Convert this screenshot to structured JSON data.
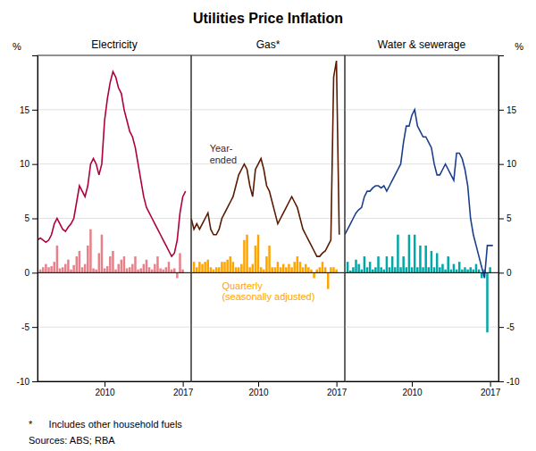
{
  "title": "Utilities Price Inflation",
  "footnotes": [
    "*      Includes other household fuels",
    "Sources: ABS; RBA"
  ],
  "chart_data": [
    {
      "type": "bar",
      "title": "Electricity",
      "ylabel": "%",
      "xlim": [
        2004.0,
        2017.75
      ],
      "xticks": [
        2010,
        2017
      ],
      "ylim": [
        -10,
        20
      ],
      "yticks": [
        -10,
        -5,
        0,
        5,
        10,
        15,
        {
          "value": 20,
          "label": null
        }
      ],
      "grid": true,
      "series": [
        {
          "type": "bar",
          "color": "#E8808A",
          "x": [
            2004.25,
            2004.5,
            2004.75,
            2005.0,
            2005.25,
            2005.5,
            2005.75,
            2006.0,
            2006.25,
            2006.5,
            2006.75,
            2007.0,
            2007.25,
            2007.5,
            2007.75,
            2008.0,
            2008.25,
            2008.5,
            2008.75,
            2009.0,
            2009.25,
            2009.5,
            2009.75,
            2010.0,
            2010.25,
            2010.5,
            2010.75,
            2011.0,
            2011.25,
            2011.5,
            2011.75,
            2012.0,
            2012.25,
            2012.5,
            2012.75,
            2013.0,
            2013.25,
            2013.5,
            2013.75,
            2014.0,
            2014.25,
            2014.5,
            2014.75,
            2015.0,
            2015.25,
            2015.5,
            2015.75,
            2016.0,
            2016.25,
            2016.5,
            2016.75,
            2017.0
          ],
          "values": [
            0.3,
            0.5,
            0.8,
            0.5,
            0.6,
            1.0,
            2.5,
            0.4,
            0.5,
            0.8,
            1.2,
            0.3,
            0.7,
            1.5,
            2.0,
            0.5,
            0.8,
            2.5,
            4.0,
            0.4,
            0.3,
            1.8,
            3.5,
            0.4,
            0.6,
            1.5,
            2.0,
            0.3,
            0.8,
            1.2,
            1.5,
            0.4,
            0.5,
            0.8,
            1.5,
            0.3,
            0.4,
            0.8,
            1.2,
            0.5,
            0.3,
            0.8,
            1.5,
            0.4,
            0.3,
            0.5,
            1.0,
            0.3,
            0.4,
            -0.5,
            1.8,
            0.3
          ]
        },
        {
          "type": "line",
          "color": "#B0003A",
          "x": [
            2004.0,
            2004.25,
            2004.5,
            2004.75,
            2005.0,
            2005.25,
            2005.5,
            2005.75,
            2006.0,
            2006.25,
            2006.5,
            2006.75,
            2007.0,
            2007.25,
            2007.5,
            2007.75,
            2008.0,
            2008.25,
            2008.5,
            2008.75,
            2009.0,
            2009.25,
            2009.5,
            2009.75,
            2010.0,
            2010.25,
            2010.5,
            2010.75,
            2011.0,
            2011.25,
            2011.5,
            2011.75,
            2012.0,
            2012.25,
            2012.5,
            2012.75,
            2013.0,
            2013.25,
            2013.5,
            2013.75,
            2014.0,
            2014.25,
            2014.5,
            2014.75,
            2015.0,
            2015.25,
            2015.5,
            2015.75,
            2016.0,
            2016.25,
            2016.5,
            2016.75,
            2017.0,
            2017.25
          ],
          "values": [
            3.0,
            3.2,
            3.0,
            2.8,
            3.0,
            3.5,
            4.5,
            5.0,
            4.5,
            4.0,
            3.8,
            4.2,
            4.5,
            5.0,
            6.5,
            8.0,
            7.5,
            7.0,
            8.0,
            10.0,
            10.5,
            10.0,
            9.0,
            10.0,
            14.0,
            16.0,
            17.5,
            18.5,
            18.0,
            17.0,
            16.5,
            15.0,
            14.0,
            13.0,
            12.5,
            11.5,
            10.0,
            8.5,
            7.0,
            6.0,
            5.5,
            5.0,
            4.5,
            4.0,
            3.5,
            3.0,
            2.5,
            2.0,
            1.5,
            1.8,
            3.0,
            5.5,
            7.0,
            7.5
          ]
        }
      ]
    },
    {
      "type": "bar",
      "title": "Gas*",
      "tick_labels": "x",
      "xlim": [
        2004.0,
        2017.75
      ],
      "xticks": [
        2010,
        2017
      ],
      "ylim": [
        -10,
        20
      ],
      "yticks": [
        -10,
        -5,
        0,
        5,
        10,
        15,
        {
          "value": 20,
          "label": null
        }
      ],
      "grid": true,
      "annotations": [
        {
          "text": "Year-\nended",
          "color": "#5C1A00"
        },
        {
          "text": "Quarterly\n(seasonally adjusted)",
          "color": "#FFA500"
        }
      ],
      "series": [
        {
          "type": "bar",
          "color": "#FFA500",
          "x": [
            2004.25,
            2004.5,
            2004.75,
            2005.0,
            2005.25,
            2005.5,
            2005.75,
            2006.0,
            2006.25,
            2006.5,
            2006.75,
            2007.0,
            2007.25,
            2007.5,
            2007.75,
            2008.0,
            2008.25,
            2008.5,
            2008.75,
            2009.0,
            2009.25,
            2009.5,
            2009.75,
            2010.0,
            2010.25,
            2010.5,
            2010.75,
            2011.0,
            2011.25,
            2011.5,
            2011.75,
            2012.0,
            2012.25,
            2012.5,
            2012.75,
            2013.0,
            2013.25,
            2013.5,
            2013.75,
            2014.0,
            2014.25,
            2014.5,
            2014.75,
            2015.0,
            2015.25,
            2015.5,
            2015.75,
            2016.0,
            2016.25,
            2016.5,
            2016.75,
            2017.0
          ],
          "values": [
            1.0,
            0.5,
            1.0,
            0.8,
            1.0,
            1.2,
            0.5,
            0.3,
            0.5,
            0.5,
            1.0,
            1.0,
            1.2,
            1.5,
            1.0,
            0.5,
            0.5,
            0.8,
            3.0,
            3.5,
            0.5,
            0.8,
            2.5,
            3.5,
            0.5,
            0.3,
            1.5,
            2.5,
            0.5,
            0.5,
            1.0,
            0.5,
            0.8,
            0.5,
            0.8,
            0.5,
            1.0,
            1.5,
            1.0,
            0.5,
            0.8,
            0.5,
            0.3,
            -0.5,
            0.3,
            0.5,
            1.0,
            0.5,
            -1.5,
            0.5,
            0.5,
            0.3
          ]
        },
        {
          "type": "line",
          "color": "#5C1A00",
          "x": [
            2004.0,
            2004.25,
            2004.5,
            2004.75,
            2005.0,
            2005.25,
            2005.5,
            2005.75,
            2006.0,
            2006.25,
            2006.5,
            2006.75,
            2007.0,
            2007.25,
            2007.5,
            2007.75,
            2008.0,
            2008.25,
            2008.5,
            2008.75,
            2009.0,
            2009.25,
            2009.5,
            2009.75,
            2010.0,
            2010.25,
            2010.5,
            2010.75,
            2011.0,
            2011.25,
            2011.5,
            2011.75,
            2012.0,
            2012.25,
            2012.5,
            2012.75,
            2013.0,
            2013.25,
            2013.5,
            2013.75,
            2014.0,
            2014.25,
            2014.5,
            2014.75,
            2015.0,
            2015.25,
            2015.5,
            2015.75,
            2016.0,
            2016.25,
            2016.5,
            2016.75,
            2017.0,
            2017.25
          ],
          "values": [
            5.0,
            4.0,
            4.5,
            4.0,
            4.5,
            5.0,
            5.5,
            4.0,
            3.5,
            3.5,
            4.0,
            5.0,
            5.5,
            6.0,
            6.5,
            7.0,
            8.0,
            9.0,
            9.5,
            10.0,
            9.5,
            8.0,
            7.0,
            9.5,
            10.0,
            10.5,
            9.5,
            8.0,
            7.5,
            6.5,
            5.5,
            4.5,
            5.0,
            5.5,
            6.0,
            6.5,
            7.0,
            6.5,
            6.0,
            5.0,
            4.0,
            3.5,
            3.0,
            2.5,
            2.0,
            1.5,
            1.5,
            1.8,
            2.0,
            2.5,
            3.0,
            18.0,
            19.5,
            3.5
          ]
        }
      ]
    },
    {
      "type": "bar",
      "title": "Water & sewerage",
      "ylabel": "%",
      "xlim": [
        2004.0,
        2017.75
      ],
      "xticks": [
        2010,
        2017
      ],
      "ylim": [
        -10,
        20
      ],
      "yticks": [
        -10,
        -5,
        0,
        5,
        10,
        15,
        {
          "value": 20,
          "label": null
        }
      ],
      "grid": true,
      "series": [
        {
          "type": "bar",
          "color": "#00A8A8",
          "x": [
            2004.25,
            2004.5,
            2004.75,
            2005.0,
            2005.25,
            2005.5,
            2005.75,
            2006.0,
            2006.25,
            2006.5,
            2006.75,
            2007.0,
            2007.25,
            2007.5,
            2007.75,
            2008.0,
            2008.25,
            2008.5,
            2008.75,
            2009.0,
            2009.25,
            2009.5,
            2009.75,
            2010.0,
            2010.25,
            2010.5,
            2010.75,
            2011.0,
            2011.25,
            2011.5,
            2011.75,
            2012.0,
            2012.25,
            2012.5,
            2012.75,
            2013.0,
            2013.25,
            2013.5,
            2013.75,
            2014.0,
            2014.25,
            2014.5,
            2014.75,
            2015.0,
            2015.25,
            2015.5,
            2015.75,
            2016.0,
            2016.25,
            2016.5,
            2016.75,
            2017.0
          ],
          "values": [
            1.0,
            0.2,
            0.5,
            1.2,
            0.8,
            0.3,
            1.5,
            0.5,
            1.0,
            0.3,
            0.5,
            1.5,
            0.5,
            0.3,
            1.5,
            0.5,
            1.5,
            0.5,
            3.5,
            0.5,
            1.5,
            0.5,
            3.5,
            0.5,
            3.5,
            0.5,
            2.5,
            0.5,
            2.5,
            0.5,
            2.0,
            0.5,
            1.8,
            0.5,
            0.8,
            0.3,
            1.5,
            0.3,
            0.8,
            0.3,
            1.0,
            0.3,
            0.5,
            0.3,
            0.5,
            0.3,
            0.8,
            0.3,
            -0.5,
            0.3,
            -5.5,
            0.5
          ]
        },
        {
          "type": "line",
          "color": "#1B3F8C",
          "x": [
            2004.0,
            2004.25,
            2004.5,
            2004.75,
            2005.0,
            2005.25,
            2005.5,
            2005.75,
            2006.0,
            2006.25,
            2006.5,
            2006.75,
            2007.0,
            2007.25,
            2007.5,
            2007.75,
            2008.0,
            2008.25,
            2008.5,
            2008.75,
            2009.0,
            2009.25,
            2009.5,
            2009.75,
            2010.0,
            2010.25,
            2010.5,
            2010.75,
            2011.0,
            2011.25,
            2011.5,
            2011.75,
            2012.0,
            2012.25,
            2012.5,
            2012.75,
            2013.0,
            2013.25,
            2013.5,
            2013.75,
            2014.0,
            2014.25,
            2014.5,
            2014.75,
            2015.0,
            2015.25,
            2015.5,
            2015.75,
            2016.0,
            2016.25,
            2016.5,
            2016.75,
            2017.0,
            2017.25
          ],
          "values": [
            3.5,
            4.0,
            4.5,
            5.0,
            5.5,
            5.8,
            6.0,
            7.0,
            7.5,
            7.5,
            7.8,
            8.0,
            8.0,
            7.8,
            8.0,
            7.5,
            8.0,
            8.5,
            9.0,
            9.5,
            10.0,
            12.0,
            13.5,
            13.5,
            14.5,
            15.0,
            13.5,
            13.0,
            12.5,
            12.5,
            12.0,
            11.5,
            10.0,
            9.0,
            9.0,
            9.5,
            10.0,
            9.5,
            9.0,
            8.5,
            11.0,
            11.0,
            10.5,
            9.5,
            8.0,
            5.0,
            3.5,
            2.5,
            1.5,
            0.5,
            -0.5,
            2.5,
            2.5,
            2.5
          ]
        }
      ]
    }
  ]
}
